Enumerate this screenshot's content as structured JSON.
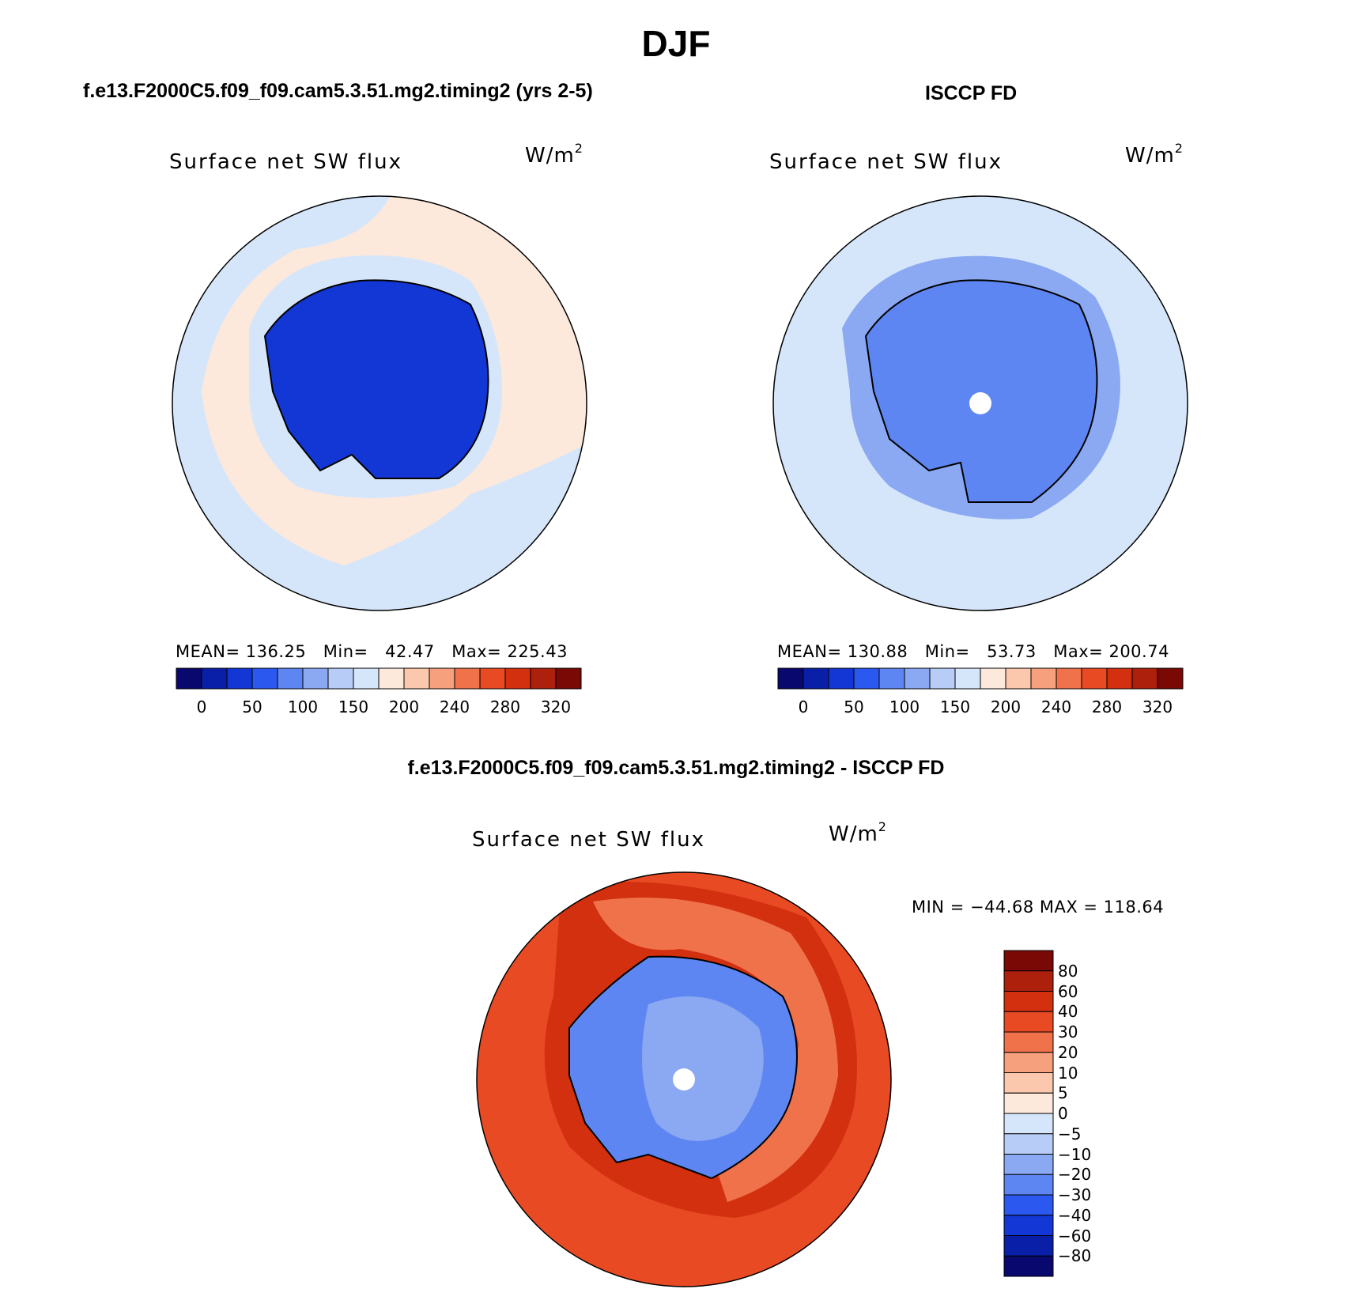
{
  "page_title": "DJF",
  "chart_data": [
    {
      "type": "heatmap",
      "projection": "south-polar-stereographic",
      "panel_title": "f.e13.F2000C5.f09_f09.cam5.3.51.mg2.timing2 (yrs 2-5)",
      "variable": "Surface net SW flux",
      "units": "W/m",
      "units_exp": "2",
      "stats": {
        "mean": "136.25",
        "min": "42.47",
        "max": "225.43"
      },
      "stats_text": "MEAN= 136.25   Min=   42.47   Max= 225.43",
      "colorbar": {
        "orientation": "horizontal",
        "levels": [
          0,
          25,
          50,
          75,
          100,
          125,
          150,
          175,
          200,
          220,
          240,
          260,
          280,
          300,
          320
        ],
        "tick_labels": [
          "0",
          "50",
          "100",
          "150",
          "200",
          "240",
          "280",
          "320"
        ],
        "colors": [
          "#08086e",
          "#0a1fa8",
          "#1237d4",
          "#2b58ee",
          "#5e86f2",
          "#8aa9f2",
          "#b7ccf6",
          "#d6e6fa",
          "#fde8dc",
          "#fbc8ad",
          "#f7a07e",
          "#f0724b",
          "#e84a24",
          "#d2300f",
          "#ad200c",
          "#7a0906"
        ]
      },
      "fields": {
        "ocean": 190,
        "sea_ice_margin": 150,
        "antarctica": 40
      }
    },
    {
      "type": "heatmap",
      "projection": "south-polar-stereographic",
      "panel_title": "ISCCP FD",
      "variable": "Surface net SW flux",
      "units": "W/m",
      "units_exp": "2",
      "stats": {
        "mean": "130.88",
        "min": "53.73",
        "max": "200.74"
      },
      "stats_text": "MEAN= 130.88   Min=   53.73   Max= 200.74",
      "colorbar": {
        "orientation": "horizontal",
        "levels": [
          0,
          25,
          50,
          75,
          100,
          125,
          150,
          175,
          200,
          220,
          240,
          260,
          280,
          300,
          320
        ],
        "tick_labels": [
          "0",
          "50",
          "100",
          "150",
          "200",
          "240",
          "280",
          "320"
        ],
        "colors": [
          "#08086e",
          "#0a1fa8",
          "#1237d4",
          "#2b58ee",
          "#5e86f2",
          "#8aa9f2",
          "#b7ccf6",
          "#d6e6fa",
          "#fde8dc",
          "#fbc8ad",
          "#f7a07e",
          "#f0724b",
          "#e84a24",
          "#d2300f",
          "#ad200c",
          "#7a0906"
        ]
      },
      "fields": {
        "ocean": 160,
        "sea_ice_margin": 120,
        "antarctica": 80
      }
    },
    {
      "type": "heatmap",
      "projection": "south-polar-stereographic",
      "panel_title": "f.e13.F2000C5.f09_f09.cam5.3.51.mg2.timing2 - ISCCP FD",
      "variable": "Surface net SW flux",
      "units": "W/m",
      "units_exp": "2",
      "stats": {
        "min": "−44.68",
        "max": "118.64"
      },
      "stats_text": "MIN = −44.68 MAX = 118.64",
      "colorbar": {
        "orientation": "vertical",
        "levels": [
          -80,
          -60,
          -40,
          -30,
          -20,
          -10,
          -5,
          0,
          5,
          10,
          20,
          30,
          40,
          60,
          80
        ],
        "tick_labels": [
          "80",
          "60",
          "40",
          "30",
          "20",
          "10",
          "5",
          "0",
          "−5",
          "−10",
          "−20",
          "−30",
          "−40",
          "−60",
          "−80"
        ],
        "colors": [
          "#08086e",
          "#0a1fa8",
          "#1237d4",
          "#2b58ee",
          "#5e86f2",
          "#8aa9f2",
          "#b7ccf6",
          "#d6e6fa",
          "#fde8dc",
          "#fbc8ad",
          "#f7a07e",
          "#f0724b",
          "#e84a24",
          "#d2300f",
          "#ad200c",
          "#7a0906"
        ]
      },
      "fields": {
        "ocean": 30,
        "sea_ice_margin": 40,
        "antarctica": -25
      }
    }
  ]
}
